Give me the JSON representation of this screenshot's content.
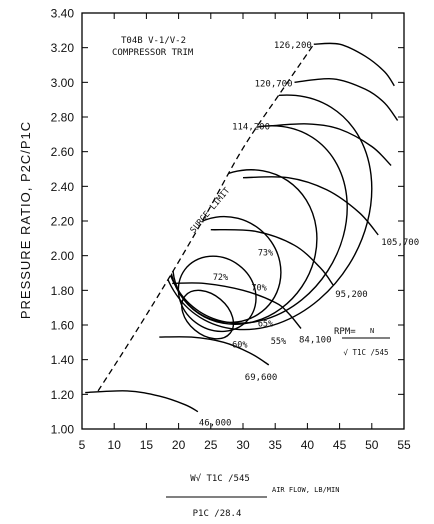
{
  "chart_data": {
    "type": "line",
    "title_lines": [
      "T04B V-1/V-2",
      "COMPRESSOR TRIM"
    ],
    "ylabel": "PRESSURE RATIO, P2C/P1C",
    "xlabel": {
      "numerator": "W√ T1C /545",
      "tail": "AIR FLOW, LB/MIN",
      "denominator": "P1C /28.4"
    },
    "xlim": [
      5,
      55
    ],
    "ylim": [
      1.0,
      3.4
    ],
    "x_ticks": [
      "5",
      "10",
      "15",
      "20",
      "25",
      "30",
      "35",
      "40",
      "45",
      "50",
      "55"
    ],
    "y_ticks": [
      "1.00",
      "1.20",
      "1.40",
      "1.60",
      "1.80",
      "2.00",
      "2.20",
      "2.40",
      "2.60",
      "2.80",
      "3.00",
      "3.20",
      "3.40"
    ],
    "surge_limit": {
      "label": "SURGE LIMIT",
      "points": [
        [
          7.5,
          1.22
        ],
        [
          12,
          1.48
        ],
        [
          18,
          1.84
        ],
        [
          24,
          2.22
        ],
        [
          30,
          2.62
        ],
        [
          36,
          2.95
        ],
        [
          41,
          3.22
        ]
      ]
    },
    "rpm_formula": {
      "lhs": "RPM=",
      "numerator": "N",
      "denominator": "√ T1C /545"
    },
    "speed_lines": [
      {
        "label": "46,000",
        "points": [
          [
            5.5,
            1.21
          ],
          [
            12,
            1.22
          ],
          [
            17,
            1.19
          ],
          [
            21,
            1.14
          ],
          [
            23,
            1.1
          ]
        ]
      },
      {
        "label": "69,600",
        "points": [
          [
            17,
            1.53
          ],
          [
            22,
            1.53
          ],
          [
            27,
            1.5
          ],
          [
            31,
            1.44
          ],
          [
            34,
            1.37
          ]
        ]
      },
      {
        "label": "84,100",
        "points": [
          [
            19,
            1.84
          ],
          [
            24,
            1.84
          ],
          [
            30,
            1.8
          ],
          [
            35,
            1.73
          ],
          [
            37,
            1.67
          ],
          [
            39,
            1.58
          ]
        ]
      },
      {
        "label": "95,200",
        "points": [
          [
            25,
            2.15
          ],
          [
            32,
            2.14
          ],
          [
            38,
            2.06
          ],
          [
            42,
            1.93
          ],
          [
            44,
            1.83
          ]
        ]
      },
      {
        "label": "105,700",
        "points": [
          [
            30,
            2.45
          ],
          [
            37,
            2.45
          ],
          [
            43,
            2.38
          ],
          [
            48,
            2.25
          ],
          [
            51,
            2.12
          ]
        ]
      },
      {
        "label": "114,200",
        "points": [
          [
            34.5,
            2.75
          ],
          [
            40,
            2.76
          ],
          [
            45,
            2.73
          ],
          [
            50,
            2.63
          ],
          [
            53,
            2.52
          ]
        ]
      },
      {
        "label": "120,700",
        "points": [
          [
            38,
            3.0
          ],
          [
            44,
            3.02
          ],
          [
            49,
            2.96
          ],
          [
            52,
            2.88
          ],
          [
            54,
            2.78
          ]
        ]
      },
      {
        "label": "126,200",
        "points": [
          [
            41,
            3.22
          ],
          [
            45,
            3.22
          ],
          [
            49,
            3.15
          ],
          [
            52,
            3.06
          ],
          [
            53.5,
            2.98
          ]
        ]
      }
    ],
    "efficiency_islands": [
      {
        "label": "73%",
        "center": [
          24.5,
          1.66
        ],
        "rx": 5,
        "ry": 0.52,
        "tilt": -50
      },
      {
        "label": "72%",
        "center": [
          26,
          1.78
        ],
        "rx": 9,
        "ry": 0.75,
        "tilt": -53
      },
      {
        "label": "70%",
        "center": [
          27.5,
          1.92
        ],
        "rx": 13,
        "ry": 1.05,
        "tilt": -55
      },
      {
        "label": "65%",
        "center": [
          30,
          2.05
        ],
        "rx": 20,
        "ry": 1.38,
        "tilt": -56
      },
      {
        "label": "60%",
        "center": [
          32,
          2.18
        ],
        "rx": 26,
        "ry": 1.68,
        "tilt": -57
      },
      {
        "label": "55%",
        "center": [
          33.5,
          2.25
        ],
        "rx": 31,
        "ry": 1.95,
        "tilt": -58
      }
    ],
    "efficiency_label_positions": [
      [
        33.5,
        2.0
      ],
      [
        26.5,
        1.86
      ],
      [
        32.5,
        1.8
      ],
      [
        33.5,
        1.59
      ],
      [
        29.5,
        1.47
      ],
      [
        35.5,
        1.49
      ]
    ],
    "grid": false,
    "legend": "none"
  }
}
